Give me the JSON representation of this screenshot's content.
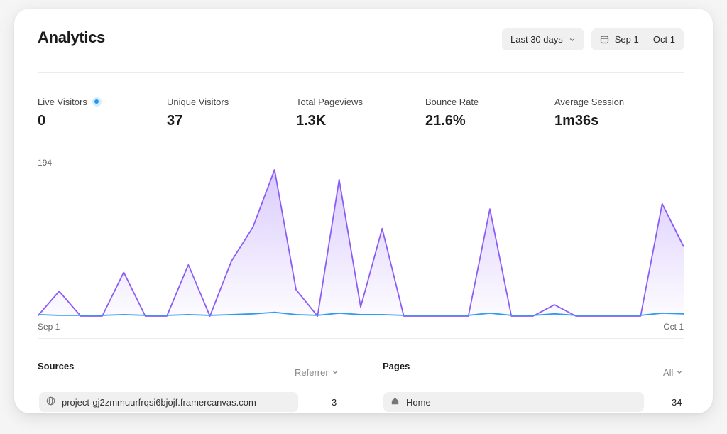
{
  "header": {
    "title": "Analytics",
    "range_label": "Last 30 days",
    "date_range": "Sep 1 — Oct 1"
  },
  "stats": [
    {
      "label": "Live Visitors",
      "value": "0"
    },
    {
      "label": "Unique Visitors",
      "value": "37"
    },
    {
      "label": "Total Pageviews",
      "value": "1.3K"
    },
    {
      "label": "Bounce Rate",
      "value": "21.6%"
    },
    {
      "label": "Average Session",
      "value": "1m36s"
    }
  ],
  "chart_data": {
    "type": "area",
    "ymax_label": "194",
    "ylim": [
      0,
      194
    ],
    "x_labels": [
      "Sep 1",
      "Oct 1"
    ],
    "series": [
      {
        "color": "#8b5cf6",
        "values": [
          0,
          33,
          0,
          0,
          58,
          0,
          0,
          68,
          0,
          73,
          118,
          194,
          35,
          0,
          181,
          12,
          116,
          0,
          0,
          0,
          0,
          142,
          0,
          0,
          15,
          0,
          0,
          0,
          0,
          149,
          92
        ]
      },
      {
        "color": "#2f9bf0",
        "values": [
          2,
          1,
          1,
          1,
          2,
          1,
          1,
          2,
          1,
          2,
          3,
          5,
          2,
          1,
          4,
          2,
          2,
          1,
          1,
          1,
          1,
          4,
          1,
          1,
          3,
          1,
          1,
          1,
          1,
          4,
          3
        ]
      }
    ]
  },
  "sources": {
    "title": "Sources",
    "filter_label": "Referrer",
    "rows": [
      {
        "label": "project-gj2zmmuurfrqsi6bjojf.framercanvas.com",
        "count": "3",
        "icon": "globe-icon"
      }
    ]
  },
  "pages": {
    "title": "Pages",
    "filter_label": "All",
    "rows": [
      {
        "label": "Home",
        "count": "34",
        "icon": "home-icon"
      }
    ]
  },
  "colors": {
    "accent_purple": "#8b5cf6",
    "accent_blue": "#2f9bf0",
    "live_dot": "#2196f3"
  }
}
